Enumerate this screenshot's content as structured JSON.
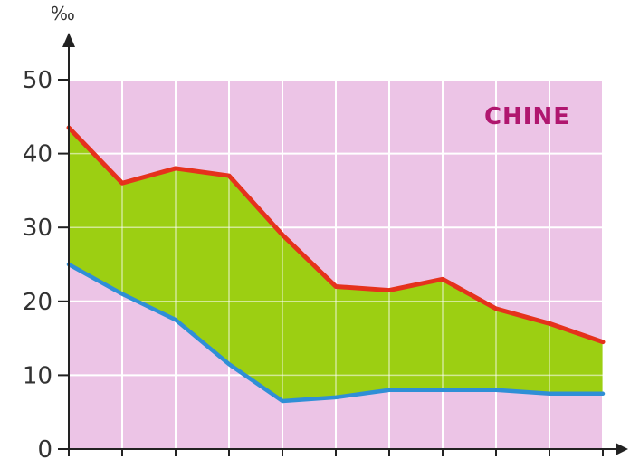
{
  "chart_data": {
    "type": "line",
    "title": "CHINE",
    "ylabel": "‰",
    "xlabel": "",
    "ylim": [
      0,
      50
    ],
    "yticks": [
      0,
      10,
      20,
      30,
      40,
      50
    ],
    "x": [
      0,
      1,
      2,
      3,
      4,
      5,
      6,
      7,
      8,
      9,
      10
    ],
    "series": [
      {
        "values": [
          43.5,
          36,
          38,
          37,
          29,
          22,
          21.5,
          23,
          19,
          17,
          14.5
        ]
      },
      {
        "values": [
          25,
          21,
          17.5,
          11.5,
          6.5,
          7,
          8,
          8,
          8,
          7.5,
          7.5
        ]
      }
    ],
    "fill_between": true,
    "grid": true,
    "colors": {
      "background": "#ecc4e6",
      "fill": "#9ccf12",
      "upper_line": "#e5321c",
      "lower_line": "#2f8fd6",
      "title": "#b0166f",
      "grid": "#ffffff"
    }
  }
}
